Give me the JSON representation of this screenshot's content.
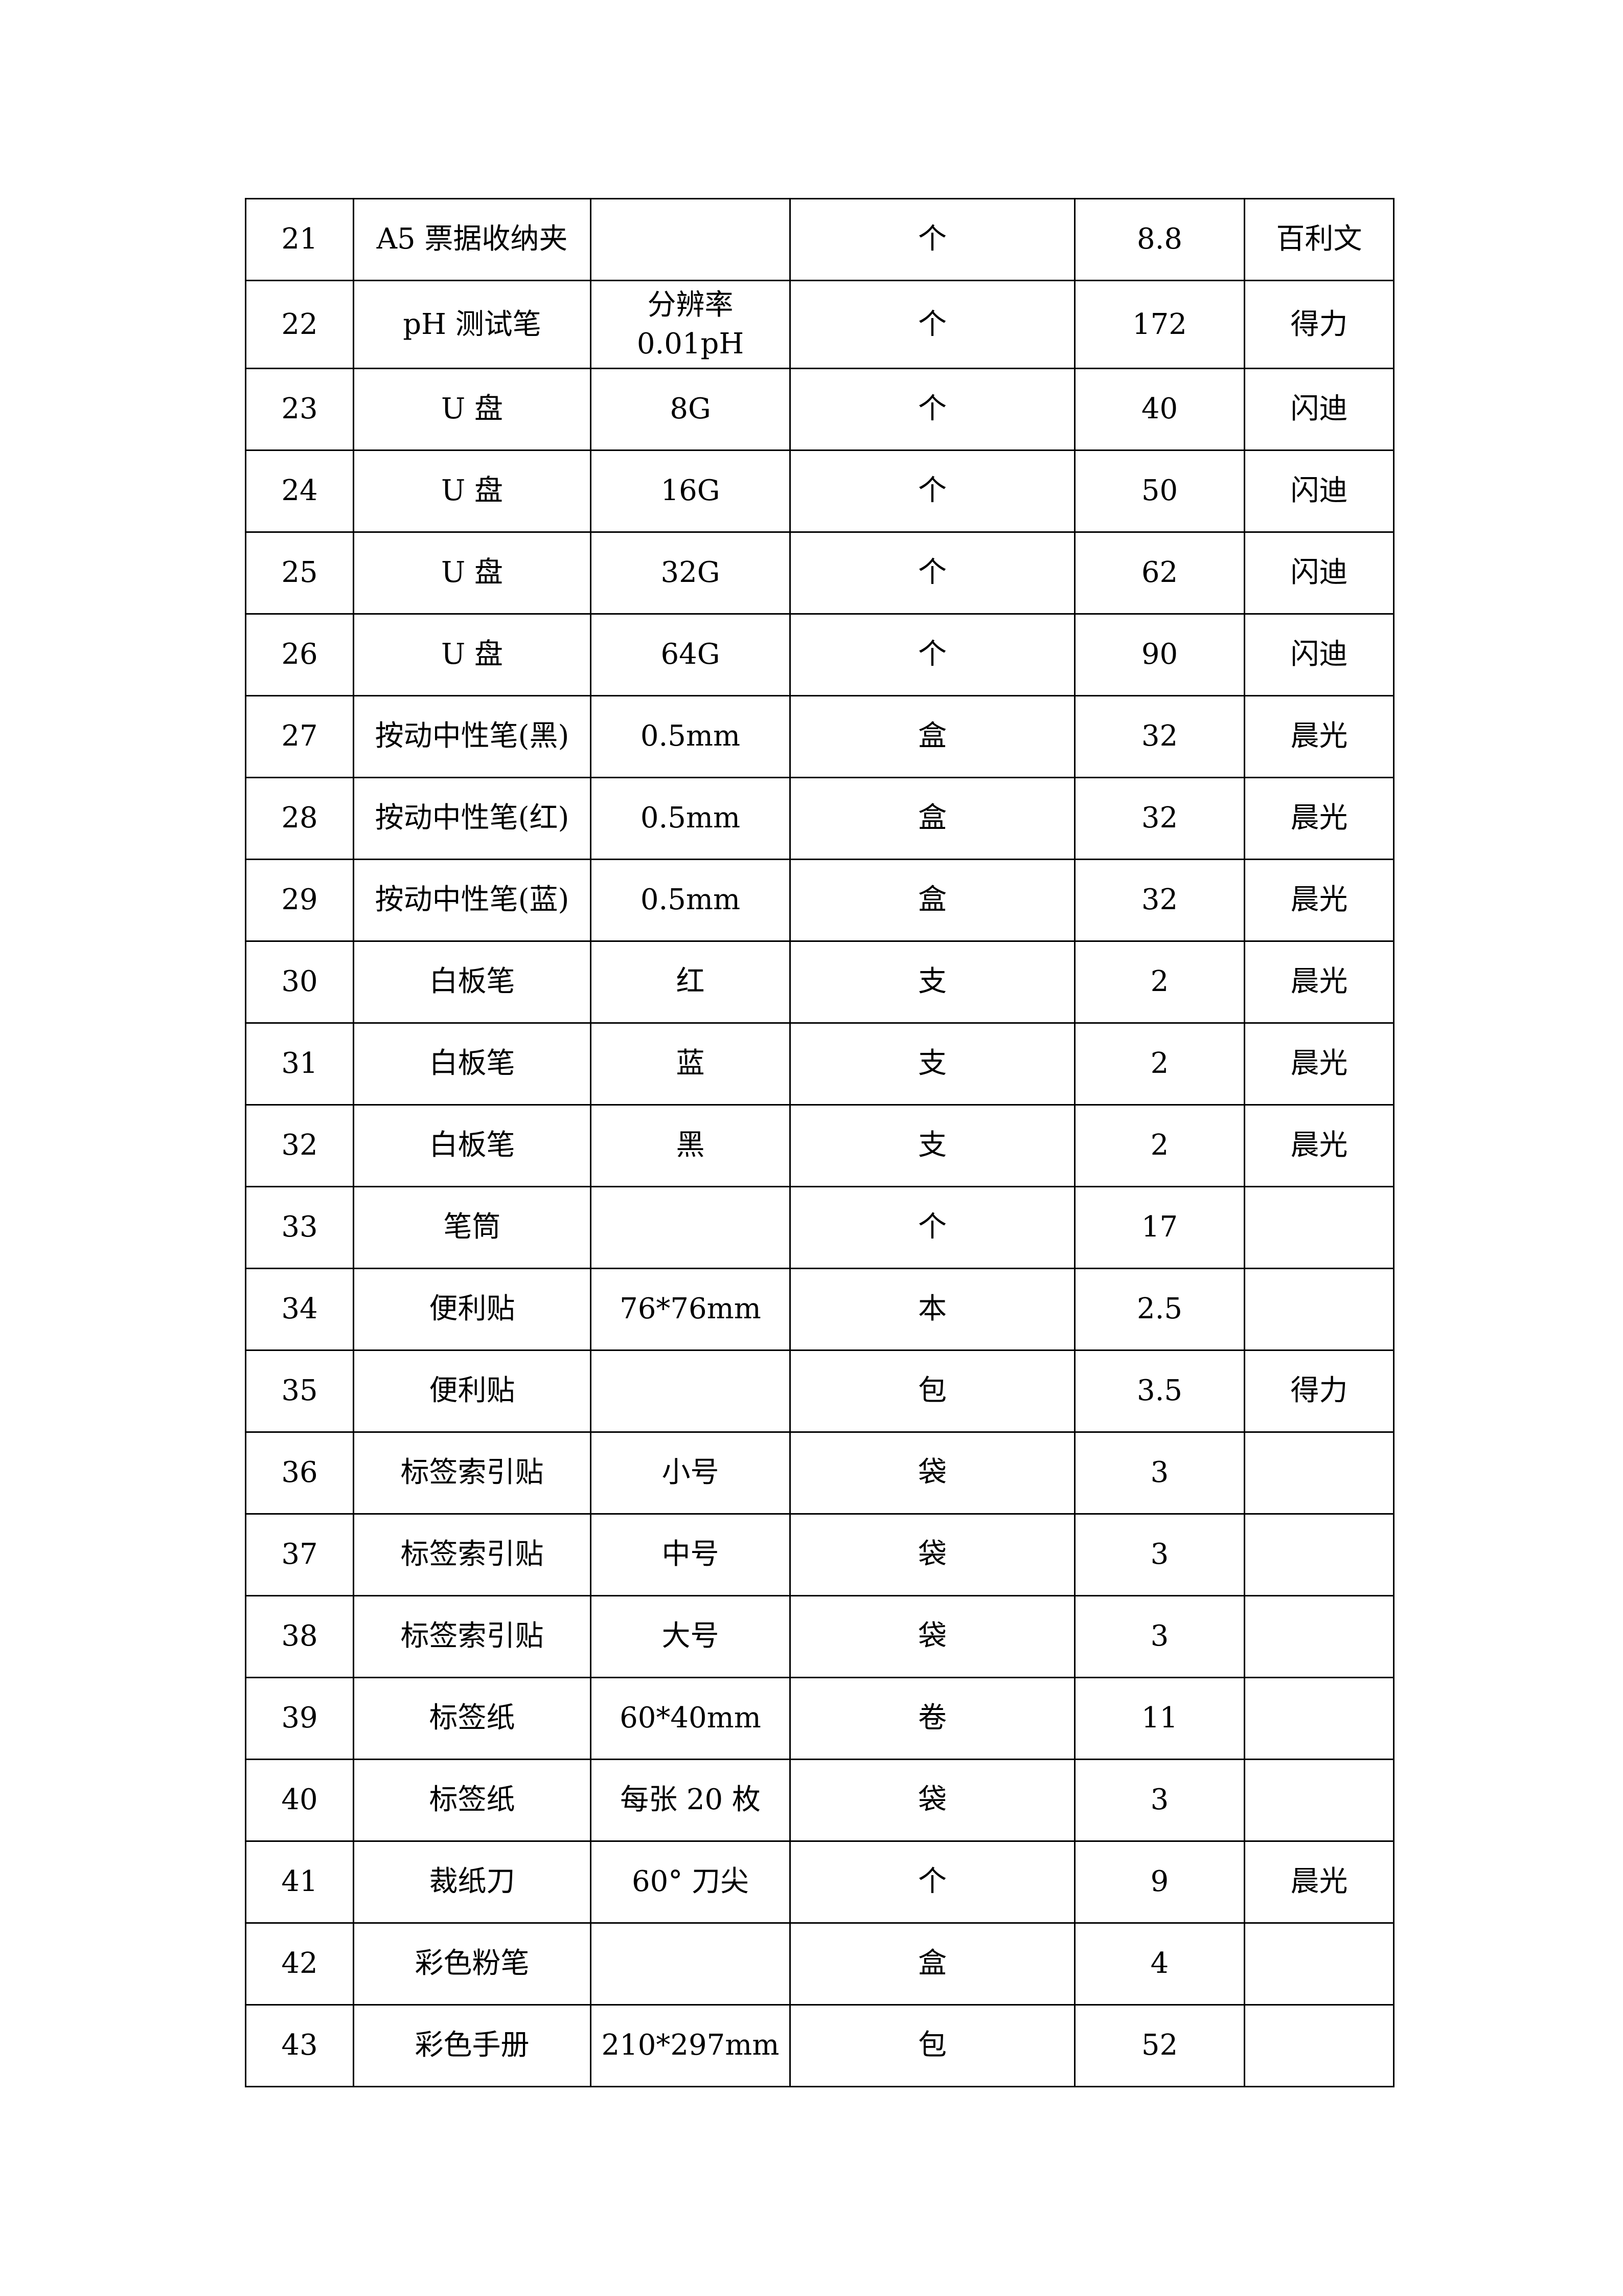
{
  "rows": [
    {
      "no": "21",
      "name": "A5 票据收纳夹",
      "spec": "",
      "unit": "个",
      "price": "8.8",
      "brand": "百利文"
    },
    {
      "no": "22",
      "name": "pH 测试笔",
      "spec": "分辨率",
      "spec2": "0.01pH",
      "unit": "个",
      "price": "172",
      "brand": "得力"
    },
    {
      "no": "23",
      "name": "U 盘",
      "spec": "8G",
      "unit": "个",
      "price": "40",
      "brand": "闪迪"
    },
    {
      "no": "24",
      "name": "U 盘",
      "spec": "16G",
      "unit": "个",
      "price": "50",
      "brand": "闪迪"
    },
    {
      "no": "25",
      "name": "U 盘",
      "spec": "32G",
      "unit": "个",
      "price": "62",
      "brand": "闪迪"
    },
    {
      "no": "26",
      "name": "U 盘",
      "spec": "64G",
      "unit": "个",
      "price": "90",
      "brand": "闪迪"
    },
    {
      "no": "27",
      "name": "按动中性笔(黑)",
      "spec": "0.5mm",
      "unit": "盒",
      "price": "32",
      "brand": "晨光"
    },
    {
      "no": "28",
      "name": "按动中性笔(红)",
      "spec": "0.5mm",
      "unit": "盒",
      "price": "32",
      "brand": "晨光"
    },
    {
      "no": "29",
      "name": "按动中性笔(蓝)",
      "spec": "0.5mm",
      "unit": "盒",
      "price": "32",
      "brand": "晨光"
    },
    {
      "no": "30",
      "name": "白板笔",
      "spec": "红",
      "unit": "支",
      "price": "2",
      "brand": "晨光"
    },
    {
      "no": "31",
      "name": "白板笔",
      "spec": "蓝",
      "unit": "支",
      "price": "2",
      "brand": "晨光"
    },
    {
      "no": "32",
      "name": "白板笔",
      "spec": "黑",
      "unit": "支",
      "price": "2",
      "brand": "晨光"
    },
    {
      "no": "33",
      "name": "笔筒",
      "spec": "",
      "unit": "个",
      "price": "17",
      "brand": ""
    },
    {
      "no": "34",
      "name": "便利贴",
      "spec": "76*76mm",
      "unit": "本",
      "price": "2.5",
      "brand": ""
    },
    {
      "no": "35",
      "name": "便利贴",
      "spec": "",
      "unit": "包",
      "price": "3.5",
      "brand": "得力"
    },
    {
      "no": "36",
      "name": "标签索引贴",
      "spec": "小号",
      "unit": "袋",
      "price": "3",
      "brand": ""
    },
    {
      "no": "37",
      "name": "标签索引贴",
      "spec": "中号",
      "unit": "袋",
      "price": "3",
      "brand": ""
    },
    {
      "no": "38",
      "name": "标签索引贴",
      "spec": "大号",
      "unit": "袋",
      "price": "3",
      "brand": ""
    },
    {
      "no": "39",
      "name": "标签纸",
      "spec": "60*40mm",
      "unit": "卷",
      "price": "11",
      "brand": ""
    },
    {
      "no": "40",
      "name": "标签纸",
      "spec": "每张 20 枚",
      "unit": "袋",
      "price": "3",
      "brand": ""
    },
    {
      "no": "41",
      "name": "裁纸刀",
      "spec": "60° 刀尖",
      "unit": "个",
      "price": "9",
      "brand": "晨光"
    },
    {
      "no": "42",
      "name": "彩色粉笔",
      "spec": "",
      "unit": "盒",
      "price": "4",
      "brand": ""
    },
    {
      "no": "43",
      "name": "彩色手册",
      "spec": "210*297mm",
      "unit": "包",
      "price": "52",
      "brand": ""
    }
  ]
}
